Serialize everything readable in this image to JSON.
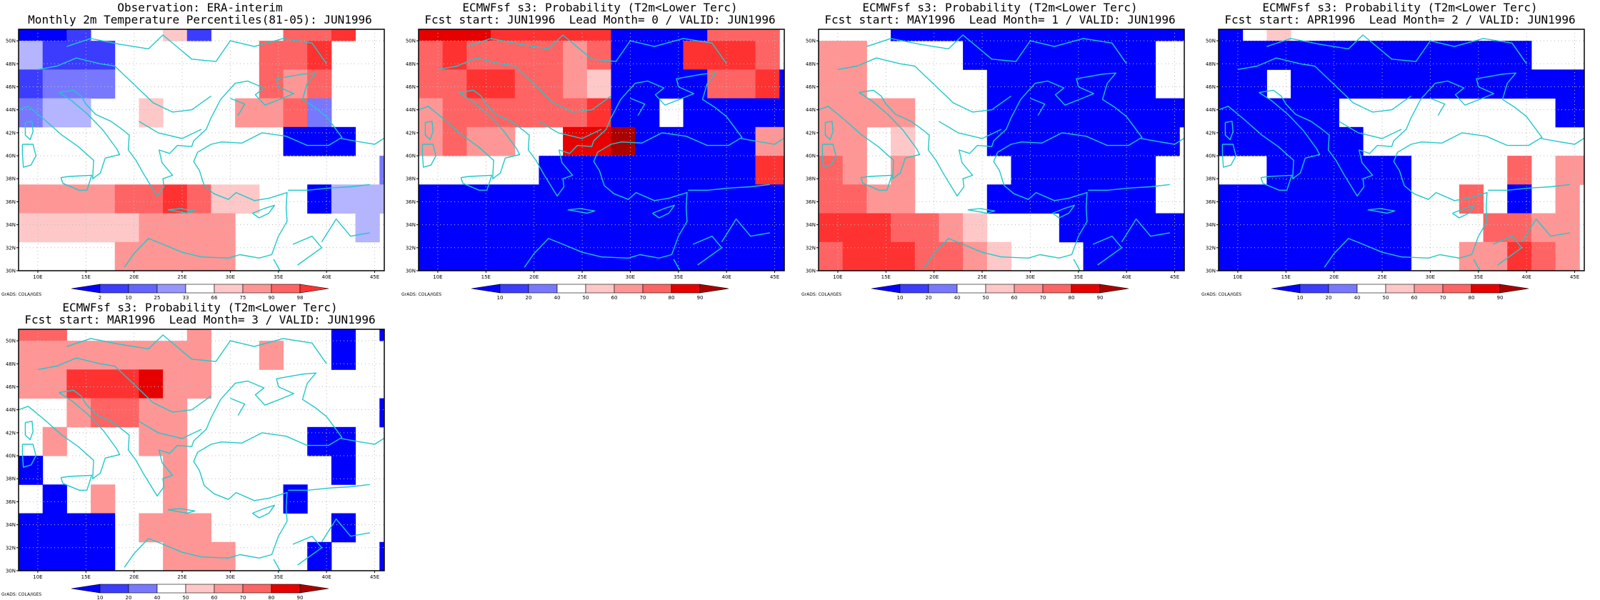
{
  "colors": {
    "blue_scale": [
      "#0000ff",
      "#3c3cff",
      "#7878ff",
      "#b4b4ff"
    ],
    "red_scale": [
      "#ffc8c8",
      "#ff9696",
      "#ff6464",
      "#ff3232",
      "#e60000",
      "#aa0000"
    ],
    "coast": "#20c8c8",
    "grid": "#bbbbbb"
  },
  "map": {
    "lon_min": 8,
    "lon_max": 46,
    "lat_min": 30,
    "lat_max": 51,
    "cell_deg": 2.5,
    "lon_ticks": [
      10,
      15,
      20,
      25,
      30,
      35,
      40,
      45
    ],
    "lon_tick_labels": [
      "10E",
      "15E",
      "20E",
      "25E",
      "30E",
      "35E",
      "40E",
      "45E"
    ],
    "lat_ticks": [
      30,
      32,
      34,
      36,
      38,
      40,
      42,
      44,
      46,
      48,
      50
    ],
    "lat_tick_labels": [
      "30N",
      "32N",
      "34N",
      "36N",
      "38N",
      "40N",
      "42N",
      "44N",
      "46N",
      "48N",
      "50N"
    ]
  },
  "credit": "GrADS: COLA/IGES",
  "panels": [
    {
      "id": "obs",
      "title_line1": "Observation: ERA-interim",
      "title_line2": "Monthly 2m Temperature Percentiles(81-05): JUN1996",
      "colorbar": [
        "2",
        "10",
        "25",
        "33",
        "66",
        "75",
        "90",
        "98"
      ],
      "grid_classes": [
        [
          0,
          0,
          0,
          0,
          0,
          0,
          0,
          0,
          0,
          0,
          0,
          0,
          0,
          0,
          0,
          0
        ],
        [
          0,
          0,
          0,
          0,
          0,
          0,
          0,
          0,
          0,
          0,
          0,
          0,
          0,
          0,
          0,
          0
        ],
        [
          0,
          0,
          0,
          0,
          0,
          0,
          0,
          0,
          0,
          0,
          0,
          0,
          0,
          0,
          0,
          0
        ],
        [
          0,
          0,
          0,
          0,
          0,
          0,
          0,
          0,
          0,
          0,
          0,
          0,
          0,
          0,
          0,
          0
        ],
        [
          0,
          0,
          0,
          0,
          0,
          0,
          0,
          0,
          0,
          0,
          0,
          0,
          0,
          0,
          0,
          0
        ],
        [
          0,
          0,
          0,
          0,
          0,
          0,
          0,
          0,
          0,
          0,
          0,
          0,
          0,
          0,
          0,
          0
        ],
        [
          0,
          0,
          0,
          0,
          0,
          0,
          0,
          0,
          0,
          0,
          0,
          0,
          0,
          0,
          0,
          0
        ],
        [
          0,
          0,
          0,
          0,
          0,
          0,
          0,
          0,
          0,
          0,
          0,
          0,
          0,
          0,
          0,
          0
        ],
        [
          0,
          0,
          0,
          0,
          0,
          0,
          0,
          0,
          0,
          0,
          0,
          0,
          0,
          0,
          0,
          0
        ]
      ],
      "cells": [
        [
          -4,
          -4,
          -3,
          0,
          0,
          0,
          1,
          -3,
          0,
          0,
          0,
          3,
          3,
          4,
          0,
          0
        ],
        [
          -1,
          -3,
          -3,
          -3,
          0,
          0,
          0,
          0,
          0,
          0,
          3,
          3,
          4,
          0,
          0,
          0
        ],
        [
          -3,
          -2,
          -2,
          -2,
          0,
          0,
          0,
          0,
          0,
          0,
          3,
          2,
          3,
          0,
          0,
          0
        ],
        [
          -2,
          -1,
          -1,
          0,
          0,
          1,
          0,
          0,
          0,
          2,
          2,
          3,
          -2,
          0,
          0,
          0
        ],
        [
          0,
          0,
          0,
          0,
          0,
          0,
          0,
          0,
          0,
          0,
          0,
          -4,
          -4,
          -4,
          0,
          0
        ],
        [
          0,
          0,
          0,
          0,
          0,
          0,
          0,
          0,
          0,
          0,
          0,
          0,
          0,
          0,
          0,
          -2
        ],
        [
          2,
          2,
          2,
          2,
          3,
          3,
          4,
          3,
          1,
          1,
          0,
          0,
          -4,
          -1,
          -1,
          -1
        ],
        [
          1,
          1,
          1,
          1,
          1,
          2,
          2,
          2,
          2,
          0,
          0,
          0,
          0,
          0,
          -1,
          0
        ],
        [
          0,
          0,
          0,
          0,
          2,
          2,
          2,
          2,
          2,
          0,
          0,
          0,
          0,
          0,
          0,
          0
        ]
      ]
    },
    {
      "id": "lead0",
      "title_line1": "ECMWFsf s3: Probability (T2m<Lower Terc)",
      "title_line2": "Fcst start: JUN1996  Lead Month= 0 / VALID: JUN1996",
      "colorbar": [
        "10",
        "20",
        "40",
        "50",
        "60",
        "70",
        "80",
        "90"
      ],
      "cells": [
        [
          5,
          5,
          5,
          4,
          4,
          4,
          4,
          4,
          -4,
          -4,
          -4,
          -4,
          3,
          3,
          3,
          0
        ],
        [
          3,
          4,
          3,
          3,
          3,
          3,
          2,
          3,
          -4,
          -4,
          -4,
          4,
          4,
          4,
          3,
          0
        ],
        [
          3,
          3,
          4,
          4,
          3,
          3,
          2,
          1,
          -4,
          -4,
          -4,
          -4,
          3,
          3,
          4,
          -4
        ],
        [
          2,
          3,
          3,
          3,
          3,
          3,
          3,
          4,
          -4,
          -4,
          0,
          -4,
          -4,
          -4,
          -4,
          -4
        ],
        [
          2,
          3,
          2,
          2,
          0,
          0,
          5,
          5,
          6,
          -4,
          -4,
          -4,
          -4,
          -4,
          2,
          2
        ],
        [
          0,
          0,
          0,
          0,
          0,
          -4,
          -4,
          -4,
          -4,
          -4,
          -4,
          -4,
          -4,
          -4,
          4,
          4
        ],
        [
          -4,
          -4,
          -4,
          -4,
          -4,
          -4,
          -4,
          -4,
          -4,
          -4,
          -4,
          -4,
          -4,
          -4,
          -4,
          -4
        ],
        [
          -4,
          -4,
          -4,
          -4,
          -4,
          -4,
          -4,
          -4,
          -4,
          -4,
          -4,
          -4,
          -4,
          -4,
          -4,
          -4
        ],
        [
          -4,
          -4,
          -4,
          -4,
          -4,
          -4,
          -4,
          -4,
          -4,
          -4,
          -4,
          -4,
          -4,
          -4,
          -4,
          -4
        ]
      ]
    },
    {
      "id": "lead1",
      "title_line1": "ECMWFsf s3: Probability (T2m<Lower Terc)",
      "title_line2": "Fcst start: MAY1996  Lead Month= 1 / VALID: JUN1996",
      "colorbar": [
        "10",
        "20",
        "40",
        "50",
        "60",
        "70",
        "80",
        "90"
      ],
      "cells": [
        [
          0,
          0,
          0,
          -4,
          -4,
          -4,
          -4,
          -4,
          -4,
          -4,
          -4,
          -4,
          -4,
          -4,
          -4,
          -4
        ],
        [
          2,
          2,
          0,
          0,
          0,
          0,
          -4,
          -4,
          -4,
          -4,
          -4,
          -4,
          -4,
          -4,
          0,
          0
        ],
        [
          2,
          2,
          0,
          0,
          0,
          0,
          0,
          -4,
          -4,
          -4,
          -4,
          -4,
          -4,
          -4,
          0,
          0
        ],
        [
          2,
          2,
          2,
          2,
          0,
          0,
          0,
          -4,
          -4,
          -4,
          -4,
          -4,
          -4,
          -4,
          -4,
          -4
        ],
        [
          2,
          2,
          0,
          1,
          0,
          0,
          0,
          -4,
          -4,
          -4,
          -4,
          -4,
          -4,
          -4,
          -4,
          0
        ],
        [
          3,
          2,
          0,
          2,
          0,
          0,
          0,
          0,
          -4,
          -4,
          -4,
          -4,
          -4,
          -4,
          0,
          0
        ],
        [
          3,
          3,
          2,
          2,
          0,
          0,
          0,
          -4,
          -4,
          -4,
          -4,
          -4,
          -4,
          -4,
          0,
          0
        ],
        [
          4,
          4,
          4,
          3,
          3,
          2,
          1,
          0,
          0,
          0,
          -4,
          -4,
          -4,
          -4,
          -4,
          -4
        ],
        [
          3,
          4,
          4,
          4,
          3,
          3,
          2,
          1,
          0,
          0,
          0,
          -4,
          -4,
          -4,
          -4,
          -4
        ]
      ]
    },
    {
      "id": "lead2",
      "title_line1": "ECMWFsf s3: Probability (T2m<Lower Terc)",
      "title_line2": "Fcst start: APR1996  Lead Month= 2 / VALID: JUN1996",
      "colorbar": [
        "10",
        "20",
        "40",
        "50",
        "60",
        "70",
        "80",
        "90"
      ],
      "cells": [
        [
          -4,
          0,
          1,
          0,
          0,
          0,
          0,
          0,
          0,
          0,
          0,
          0,
          0,
          0,
          0,
          0
        ],
        [
          -4,
          -4,
          -4,
          -4,
          -4,
          -4,
          -4,
          -4,
          -4,
          -4,
          -4,
          -4,
          -4,
          0,
          0,
          0
        ],
        [
          -4,
          -4,
          0,
          -4,
          -4,
          -4,
          -4,
          -4,
          -4,
          -4,
          -4,
          -4,
          -4,
          -4,
          -4,
          -4
        ],
        [
          -4,
          -4,
          -4,
          -4,
          -4,
          0,
          0,
          0,
          0,
          0,
          0,
          0,
          0,
          0,
          -4,
          -4
        ],
        [
          -4,
          -4,
          -4,
          -4,
          -4,
          -4,
          0,
          0,
          0,
          0,
          0,
          0,
          0,
          0,
          0,
          0
        ],
        [
          0,
          0,
          -4,
          -4,
          -4,
          -4,
          -4,
          -4,
          0,
          0,
          0,
          0,
          3,
          0,
          2,
          2
        ],
        [
          -4,
          -4,
          -4,
          -4,
          -4,
          -4,
          -4,
          -4,
          0,
          0,
          3,
          0,
          -4,
          0,
          2,
          0
        ],
        [
          -4,
          -4,
          -4,
          -4,
          -4,
          -4,
          -4,
          -4,
          0,
          0,
          0,
          3,
          3,
          2,
          2,
          0
        ],
        [
          -4,
          -4,
          -4,
          -4,
          -4,
          -4,
          -4,
          -4,
          0,
          0,
          2,
          2,
          4,
          3,
          2,
          0
        ]
      ]
    },
    {
      "id": "lead3",
      "title_line1": "ECMWFsf s3: Probability (T2m<Lower Terc)",
      "title_line2": "Fcst start: MAR1996  Lead Month= 3 / VALID: JUN1996",
      "colorbar": [
        "10",
        "20",
        "40",
        "50",
        "60",
        "70",
        "80",
        "90"
      ],
      "cells": [
        [
          3,
          3,
          0,
          0,
          0,
          0,
          0,
          2,
          0,
          0,
          0,
          0,
          0,
          -4,
          0,
          -4
        ],
        [
          2,
          2,
          2,
          2,
          2,
          2,
          2,
          2,
          0,
          0,
          2,
          0,
          0,
          -4,
          0,
          0
        ],
        [
          2,
          2,
          4,
          4,
          4,
          5,
          2,
          2,
          0,
          0,
          0,
          0,
          0,
          0,
          0,
          0
        ],
        [
          0,
          0,
          2,
          3,
          3,
          2,
          2,
          0,
          0,
          0,
          0,
          0,
          0,
          0,
          0,
          -4
        ],
        [
          0,
          2,
          0,
          0,
          0,
          2,
          2,
          0,
          0,
          0,
          0,
          0,
          -4,
          -4,
          0,
          0
        ],
        [
          -4,
          0,
          0,
          0,
          0,
          0,
          2,
          0,
          0,
          0,
          0,
          0,
          0,
          -4,
          0,
          0
        ],
        [
          0,
          -4,
          0,
          2,
          0,
          0,
          2,
          0,
          0,
          0,
          0,
          -4,
          0,
          0,
          0,
          0
        ],
        [
          -4,
          -4,
          -4,
          -4,
          0,
          2,
          2,
          2,
          0,
          0,
          0,
          0,
          0,
          -4,
          0,
          0
        ],
        [
          -4,
          -4,
          -4,
          -4,
          0,
          0,
          2,
          2,
          2,
          0,
          0,
          0,
          -4,
          0,
          0,
          -4
        ]
      ]
    }
  ]
}
